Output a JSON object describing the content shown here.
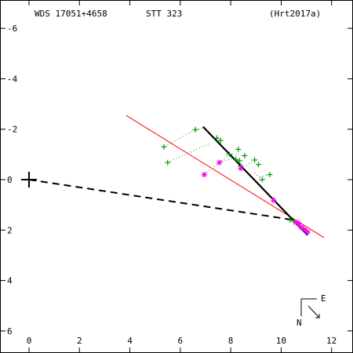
{
  "header": {
    "wds_id": "WDS 17051+4658",
    "discoverer": "STT 323",
    "reference": "(Hrt2017a)"
  },
  "compass": {
    "east_label": "E",
    "north_label": "N"
  },
  "colors": {
    "axes": "#000000",
    "measures": "#009900",
    "speckle": "#ff00ff",
    "orbit_fit": "#ff0000",
    "arc": "#000000",
    "primary": "#000000"
  },
  "chart_data": {
    "type": "scatter",
    "title": "",
    "xlabel": "",
    "ylabel": "",
    "xlim": [
      -1.15,
      13.0
    ],
    "ylim": [
      -6.7,
      7.0
    ],
    "y_inverted": true,
    "x_ticks": [
      0,
      2,
      4,
      6,
      8,
      10,
      12
    ],
    "y_ticks": [
      -6,
      -4,
      -2,
      0,
      2,
      4,
      6
    ],
    "x_tick_labels": [
      "0",
      "2",
      "4",
      "6",
      "8",
      "10",
      "12"
    ],
    "y_tick_labels": [
      "6",
      "4",
      "2",
      "0",
      "-2",
      "-4",
      "-6"
    ],
    "primary": {
      "x": 0.0,
      "y": 0.0
    },
    "series": [
      {
        "kind": "measures",
        "marker": "plus",
        "points": [
          [
            5.35,
            1.3
          ],
          [
            5.5,
            0.68
          ],
          [
            6.6,
            1.98
          ],
          [
            7.45,
            1.65
          ],
          [
            7.6,
            1.55
          ],
          [
            7.95,
            1.0
          ],
          [
            8.2,
            0.8
          ],
          [
            8.3,
            1.2
          ],
          [
            8.35,
            0.75
          ],
          [
            8.4,
            0.55
          ],
          [
            8.55,
            0.95
          ],
          [
            8.95,
            0.78
          ],
          [
            9.1,
            0.6
          ],
          [
            9.25,
            0.0
          ],
          [
            9.55,
            0.2
          ],
          [
            10.35,
            -1.6
          ],
          [
            10.5,
            -1.65
          ],
          [
            10.9,
            -1.95
          ]
        ]
      },
      {
        "kind": "speckle",
        "marker": "asterisk",
        "points": [
          [
            6.95,
            0.2
          ],
          [
            7.55,
            0.68
          ],
          [
            8.4,
            0.45
          ],
          [
            9.7,
            -0.82
          ],
          [
            10.6,
            -1.7
          ],
          [
            10.7,
            -1.75
          ],
          [
            10.8,
            -1.9
          ],
          [
            10.95,
            -2.0
          ],
          [
            11.05,
            -2.08
          ]
        ]
      },
      {
        "kind": "residual",
        "style": "dotted",
        "segments": [
          [
            [
              6.6,
              1.98
            ],
            [
              6.95,
              2.05
            ]
          ],
          [
            [
              5.35,
              1.3
            ],
            [
              6.6,
              1.98
            ]
          ],
          [
            [
              5.5,
              0.68
            ],
            [
              7.2,
              1.45
            ]
          ],
          [
            [
              7.45,
              1.65
            ],
            [
              7.65,
              1.5
            ]
          ],
          [
            [
              7.95,
              1.0
            ],
            [
              8.3,
              1.0
            ]
          ],
          [
            [
              8.95,
              0.78
            ],
            [
              8.6,
              0.55
            ]
          ],
          [
            [
              9.25,
              0.0
            ],
            [
              8.9,
              0.3
            ]
          ],
          [
            [
              9.55,
              0.2
            ],
            [
              9.1,
              0.1
            ]
          ],
          [
            [
              6.95,
              0.2
            ],
            [
              7.9,
              0.95
            ]
          ],
          [
            [
              7.55,
              0.68
            ],
            [
              8.1,
              0.85
            ]
          ]
        ]
      },
      {
        "kind": "orbit_fit",
        "style": "solid",
        "points": [
          [
            3.85,
            2.55
          ],
          [
            11.7,
            -2.3
          ]
        ]
      },
      {
        "kind": "arc",
        "style": "solid-thick",
        "points": [
          [
            6.9,
            2.1
          ],
          [
            11.05,
            -2.2
          ]
        ]
      },
      {
        "kind": "periastron_line",
        "style": "dashed",
        "points": [
          [
            0.0,
            0.0
          ],
          [
            10.5,
            -1.6
          ]
        ]
      }
    ]
  }
}
